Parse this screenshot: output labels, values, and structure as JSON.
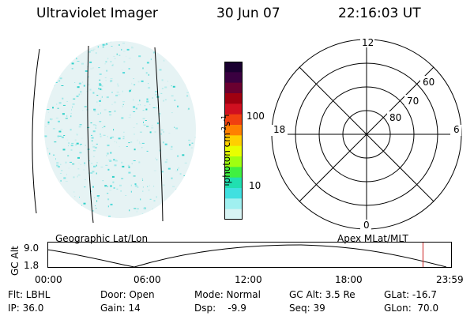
{
  "header": {
    "instrument": "Ultraviolet Imager",
    "date": "30 Jun 07",
    "time": "22:16:03 UT"
  },
  "colorbar": {
    "label": "photon cm-2s-1",
    "ticks": [
      "100",
      "10"
    ],
    "colors": [
      "#1a0030",
      "#3a0040",
      "#6a0030",
      "#a00010",
      "#d01020",
      "#f04010",
      "#ff8000",
      "#ffd000",
      "#e8ff00",
      "#a0ff10",
      "#40f040",
      "#20e0b0",
      "#40e0e0",
      "#a0f0f0",
      "#d8f4f4"
    ]
  },
  "polar": {
    "mlt_labels": {
      "top": "12",
      "left": "18",
      "right": "6",
      "bottom": "0"
    },
    "lat_labels": [
      "60",
      "70",
      "80"
    ]
  },
  "timeline": {
    "left_label": "Geographic Lat/Lon",
    "right_label": "Apex MLat/MLT",
    "axis_title": "GC Alt",
    "y_ticks": [
      "9.0",
      "1.8"
    ],
    "x_ticks": [
      "00:00",
      "06:00",
      "12:00",
      "18:00",
      "23:59"
    ],
    "marker_time": "22:16",
    "marker_color": "#cc2222"
  },
  "info": {
    "filter": "Flt: LBHL",
    "door": "Door: Open",
    "mode": "Mode: Normal",
    "gc_alt": "GC Alt: 3.5 Re",
    "glat": "GLat: -16.7",
    "ip": "IP: 36.0",
    "gain": "Gain: 14",
    "dsp": "Dsp:    -9.9",
    "seq": "Seq: 39",
    "glon": "GLon:  70.0"
  }
}
